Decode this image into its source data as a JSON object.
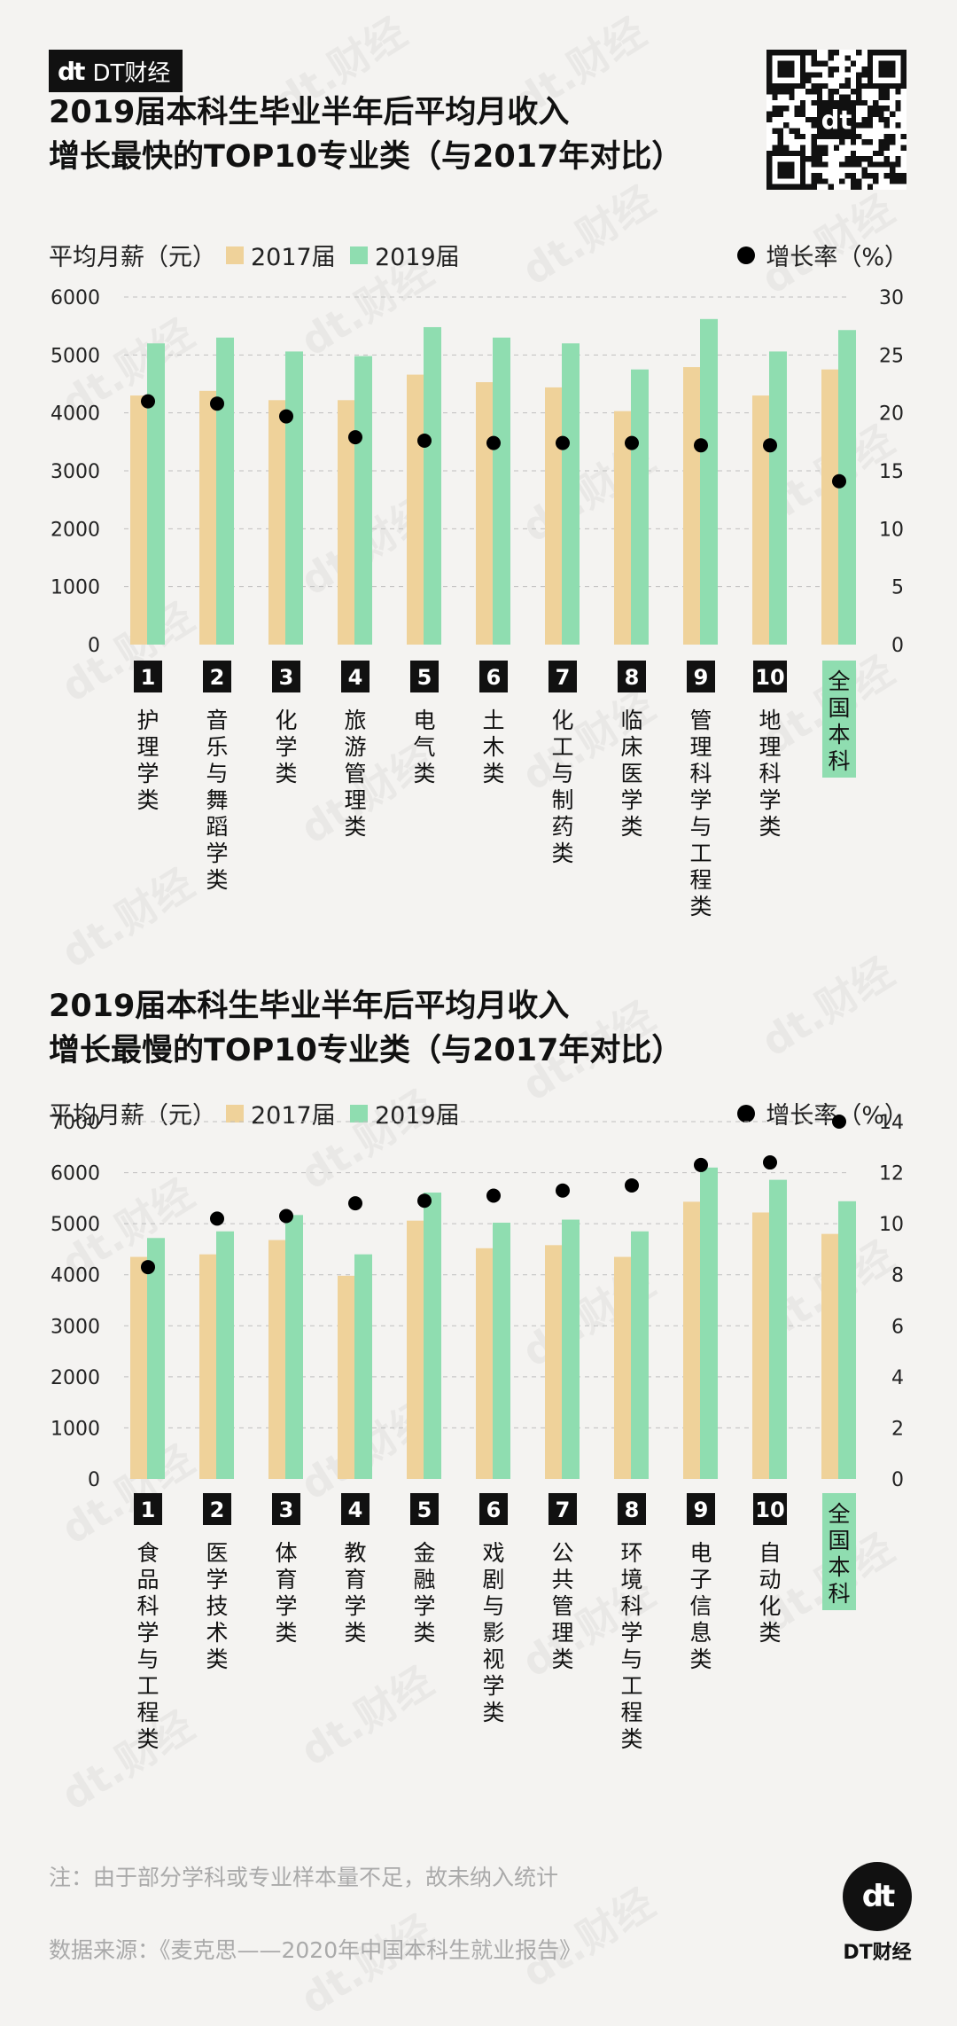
{
  "brand": {
    "logo_mark": "dt",
    "logo_text": "DT财经",
    "watermark": "dt.财经"
  },
  "colors": {
    "c2017": "#efd29a",
    "c2019": "#8fddb0",
    "dot": "#000000",
    "num_box": "#111111",
    "national_box": "#8fddb0",
    "grid": "#bfbfbf"
  },
  "legend": {
    "ylabel": "平均月薪（元）",
    "s2017": "2017届",
    "s2019": "2019届",
    "rate": "增长率（%）"
  },
  "chart1": {
    "title_line1": "2019届本科生毕业半年后平均月收入",
    "title_line2": "增长最快的TOP10专业类（与2017年对比）"
  },
  "chart2": {
    "title_line1": "2019届本科生毕业半年后平均月收入",
    "title_line2": "增长最慢的TOP10专业类（与2017年对比）"
  },
  "chart_data": [
    {
      "type": "bar",
      "title": "2019届本科生毕业半年后平均月收入增长最快的TOP10专业类（与2017年对比）",
      "ylabel": "平均月薪（元）",
      "y2label": "增长率（%）",
      "ylim": [
        0,
        6000
      ],
      "y2lim": [
        0,
        30
      ],
      "yticks": [
        0,
        1000,
        2000,
        3000,
        4000,
        5000,
        6000
      ],
      "y2ticks": [
        0,
        5,
        10,
        15,
        20,
        25,
        30
      ],
      "ranks": [
        "1",
        "2",
        "3",
        "4",
        "5",
        "6",
        "7",
        "8",
        "9",
        "10",
        ""
      ],
      "categories": [
        "护理学类",
        "音乐与舞蹈学类",
        "化学类",
        "旅游管理类",
        "电气类",
        "土木类",
        "化工与制药类",
        "临床医学类",
        "管理科学与工程类",
        "地理科学类",
        "全国本科"
      ],
      "series": [
        {
          "name": "2017届",
          "values": [
            4300,
            4380,
            4220,
            4220,
            4660,
            4530,
            4440,
            4030,
            4790,
            4300,
            4750
          ]
        },
        {
          "name": "2019届",
          "values": [
            5200,
            5300,
            5060,
            4980,
            5480,
            5300,
            5200,
            4750,
            5620,
            5060,
            5430
          ]
        },
        {
          "name": "增长率",
          "values": [
            21.0,
            20.8,
            19.7,
            17.9,
            17.6,
            17.4,
            17.4,
            17.4,
            17.2,
            17.2,
            14.1
          ]
        }
      ]
    },
    {
      "type": "bar",
      "title": "2019届本科生毕业半年后平均月收入增长最慢的TOP10专业类（与2017年对比）",
      "ylabel": "平均月薪（元）",
      "y2label": "增长率（%）",
      "ylim": [
        0,
        7000
      ],
      "y2lim": [
        0,
        14
      ],
      "yticks": [
        0,
        1000,
        2000,
        3000,
        4000,
        5000,
        6000,
        7000
      ],
      "y2ticks": [
        0,
        2,
        4,
        6,
        8,
        10,
        12,
        14
      ],
      "ranks": [
        "1",
        "2",
        "3",
        "4",
        "5",
        "6",
        "7",
        "8",
        "9",
        "10",
        ""
      ],
      "categories": [
        "食品科学与工程类",
        "医学技术类",
        "体育学类",
        "教育学类",
        "金融学类",
        "戏剧与影视学类",
        "公共管理类",
        "环境科学与工程类",
        "电子信息类",
        "自动化类",
        "全国本科"
      ],
      "series": [
        {
          "name": "2017届",
          "values": [
            4350,
            4400,
            4680,
            3980,
            5060,
            4520,
            4580,
            4350,
            5430,
            5220,
            4800
          ]
        },
        {
          "name": "2019届",
          "values": [
            4720,
            4850,
            5170,
            4400,
            5610,
            5020,
            5080,
            4850,
            6100,
            5860,
            5440
          ]
        },
        {
          "name": "增长率",
          "values": [
            8.3,
            10.2,
            10.3,
            10.8,
            10.9,
            11.1,
            11.3,
            11.5,
            12.3,
            12.4,
            14.0
          ]
        }
      ]
    }
  ],
  "footer": {
    "note": "注：由于部分学科或专业样本量不足，故未纳入统计",
    "source": "数据来源：《麦克思——2020年中国本科生就业报告》",
    "brand_mark": "dt",
    "brand_name": "DT财经"
  }
}
